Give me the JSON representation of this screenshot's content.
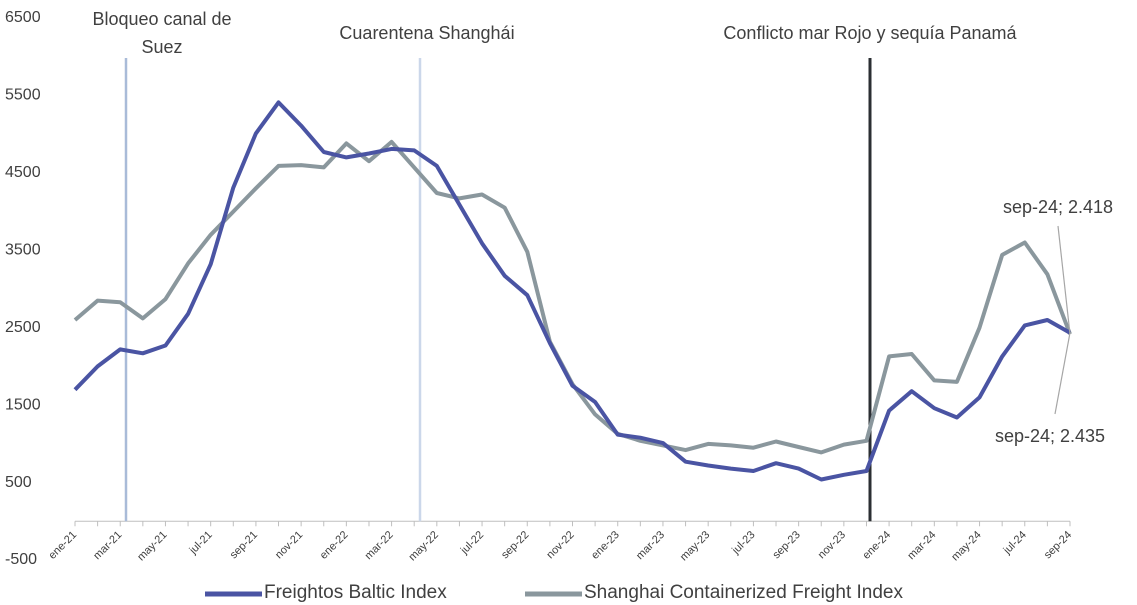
{
  "chart_data": {
    "type": "line",
    "categories": [
      "ene-21",
      null,
      "mar-21",
      null,
      "may-21",
      null,
      "jul-21",
      null,
      "sep-21",
      null,
      "nov-21",
      null,
      "ene-22",
      null,
      "mar-22",
      null,
      "may-22",
      null,
      "jul-22",
      null,
      "sep-22",
      null,
      "nov-22",
      null,
      "ene-23",
      null,
      "mar-23",
      null,
      "may-23",
      null,
      "jul-23",
      null,
      "sep-23",
      null,
      "nov-23",
      null,
      "ene-24",
      null,
      "mar-24",
      null,
      "may-24",
      null,
      "jul-24",
      null,
      "sep-24"
    ],
    "series": [
      {
        "name": "Freightos Baltic Index",
        "color": "#4a54a3",
        "values": [
          1700,
          2000,
          2220,
          2170,
          2270,
          2680,
          3320,
          4310,
          5010,
          5410,
          5110,
          4770,
          4700,
          4750,
          4810,
          4790,
          4590,
          4090,
          3590,
          3170,
          2920,
          2300,
          1750,
          1540,
          1120,
          1080,
          1010,
          770,
          720,
          680,
          650,
          750,
          680,
          540,
          600,
          650,
          1430,
          1680,
          1460,
          1340,
          1600,
          2130,
          2530,
          2600,
          2435
        ],
        "value_labels": [
          null,
          null,
          null,
          null,
          null,
          null,
          null,
          null,
          null,
          null,
          null,
          null,
          null,
          null,
          null,
          null,
          null,
          null,
          null,
          null,
          null,
          null,
          null,
          null,
          null,
          null,
          null,
          null,
          null,
          null,
          null,
          null,
          null,
          null,
          null,
          null,
          null,
          null,
          null,
          null,
          null,
          null,
          null,
          null,
          "sep-24; 2.435"
        ]
      },
      {
        "name": "Shanghai Containerized Freight Index",
        "color": "#8a979d",
        "values": [
          2600,
          2850,
          2830,
          2620,
          2870,
          3330,
          3700,
          4000,
          4300,
          4590,
          4600,
          4570,
          4880,
          4650,
          4900,
          4570,
          4240,
          4170,
          4220,
          4050,
          3480,
          2320,
          1770,
          1380,
          1130,
          1040,
          980,
          920,
          1000,
          980,
          950,
          1030,
          960,
          890,
          990,
          1040,
          2130,
          2160,
          1820,
          1800,
          2500,
          3440,
          3600,
          3190,
          2418
        ],
        "value_labels": [
          null,
          null,
          null,
          null,
          null,
          null,
          null,
          null,
          null,
          null,
          null,
          null,
          null,
          null,
          null,
          null,
          null,
          null,
          null,
          null,
          null,
          null,
          null,
          null,
          null,
          null,
          null,
          null,
          null,
          null,
          null,
          null,
          null,
          null,
          null,
          null,
          null,
          null,
          null,
          null,
          null,
          null,
          null,
          null,
          "sep-24; 2.418"
        ]
      }
    ],
    "ylim": [
      -500,
      6500
    ],
    "yticks": [
      -500,
      500,
      1500,
      2500,
      3500,
      4500,
      5500,
      6500
    ],
    "annotations": [
      {
        "text": "Bloqueo canal de Suez",
        "color": "#a9bbd8"
      },
      {
        "text": "Cuarentena Shanghái",
        "color": "#cbd7ea"
      },
      {
        "text": "Conflicto mar Rojo y sequía Panamá",
        "color": "#2b2f33"
      }
    ],
    "legend": "bottom"
  }
}
